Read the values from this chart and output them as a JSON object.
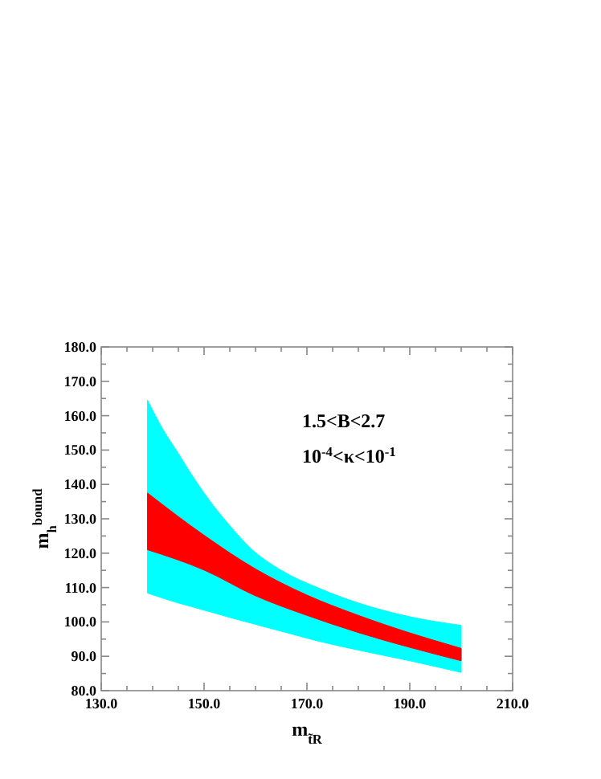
{
  "chart_data": {
    "type": "area",
    "xlabel": "m$_{t̃R}$",
    "ylabel": "m$_{h}$$^{bound}$",
    "annotations": [
      "1.5<B<2.7",
      "10$^{-4}$<κ<10$^{-1}$"
    ],
    "xlim": [
      130,
      210
    ],
    "ylim": [
      80,
      180
    ],
    "xticks": [
      {
        "value": 130,
        "label": "130.0"
      },
      {
        "value": 135,
        "label": null
      },
      {
        "value": 140,
        "label": null
      },
      {
        "value": 145,
        "label": null
      },
      {
        "value": 150,
        "label": "150.0"
      },
      {
        "value": 155,
        "label": null
      },
      {
        "value": 160,
        "label": null
      },
      {
        "value": 165,
        "label": null
      },
      {
        "value": 170,
        "label": "170.0"
      },
      {
        "value": 175,
        "label": null
      },
      {
        "value": 180,
        "label": null
      },
      {
        "value": 185,
        "label": null
      },
      {
        "value": 190,
        "label": "190.0"
      },
      {
        "value": 195,
        "label": null
      },
      {
        "value": 200,
        "label": null
      },
      {
        "value": 205,
        "label": null
      },
      {
        "value": 210,
        "label": "210.0"
      }
    ],
    "yticks": [
      {
        "value": 80,
        "label": "80.0"
      },
      {
        "value": 85,
        "label": null
      },
      {
        "value": 90,
        "label": "90.0"
      },
      {
        "value": 95,
        "label": null
      },
      {
        "value": 100,
        "label": "100.0"
      },
      {
        "value": 105,
        "label": null
      },
      {
        "value": 110,
        "label": "110.0"
      },
      {
        "value": 115,
        "label": null
      },
      {
        "value": 120,
        "label": "120.0"
      },
      {
        "value": 125,
        "label": null
      },
      {
        "value": 130,
        "label": "130.0"
      },
      {
        "value": 135,
        "label": null
      },
      {
        "value": 140,
        "label": "140.0"
      },
      {
        "value": 145,
        "label": null
      },
      {
        "value": 150,
        "label": "150.0"
      },
      {
        "value": 155,
        "label": null
      },
      {
        "value": 160,
        "label": "160.0"
      },
      {
        "value": 165,
        "label": null
      },
      {
        "value": 170,
        "label": "170.0"
      },
      {
        "value": 175,
        "label": null
      },
      {
        "value": 180,
        "label": "180.0"
      }
    ],
    "grid": false,
    "series": [
      {
        "color": "#00ffff",
        "x": [
          139,
          142,
          145,
          147.5,
          150,
          152.5,
          155,
          159,
          165,
          172,
          180,
          190,
          200
        ],
        "values": [
          null,
          null,
          null,
          null,
          null,
          null,
          null,
          null,
          null,
          null,
          null,
          null,
          null
        ],
        "upper": [
          164.5,
          156,
          149,
          143,
          137.5,
          132.5,
          128,
          121.5,
          115,
          110,
          105.5,
          101.5,
          99
        ],
        "lower": [
          108.4,
          106.9,
          105.5,
          104.5,
          103.4,
          102.4,
          101.3,
          99.7,
          97.3,
          94.5,
          91.8,
          88.7,
          85.3
        ]
      },
      {
        "color": "#ff0000",
        "x": [
          139,
          150,
          160,
          170,
          180,
          190,
          200
        ],
        "values": [
          null,
          null,
          null,
          null,
          null,
          null,
          null
        ],
        "upper": [
          137.5,
          125.2,
          115.4,
          107.8,
          101.9,
          96.8,
          92.3
        ],
        "lower": [
          121,
          115.1,
          107.6,
          101.9,
          96.9,
          92.6,
          88.7
        ]
      }
    ]
  }
}
